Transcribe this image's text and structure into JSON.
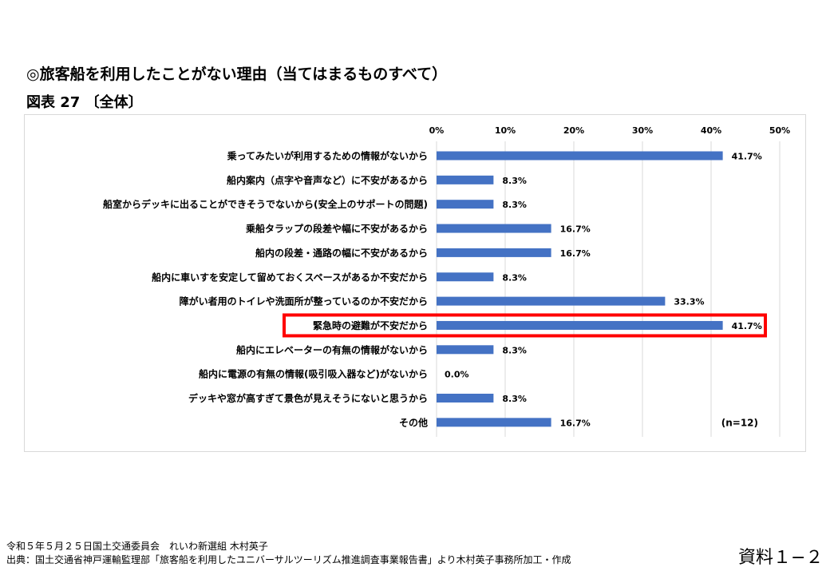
{
  "title": "◎旅客船を利用したことがない理由（当てはまるものすべて）",
  "subtitle": "図表 27 〔全体〕",
  "chart_data": {
    "type": "bar",
    "orientation": "horizontal",
    "categories": [
      "乗ってみたいが利用するための情報がないから",
      "船内案内（点字や音声など）に不安があるから",
      "船室からデッキに出ることができそうでないから(安全上のサポートの問題)",
      "乗船タラップの段差や幅に不安があるから",
      "船内の段差・通路の幅に不安があるから",
      "船内に車いすを安定して留めておくスペースがあるか不安だから",
      "障がい者用のトイレや洗面所が整っているのか不安だから",
      "緊急時の避難が不安だから",
      "船内にエレベーターの有無の情報がないから",
      "船内に電源の有無の情報(吸引吸入器など)がないから",
      "デッキや窓が高すぎて景色が見えそうにないと思うから",
      "その他"
    ],
    "values": [
      41.7,
      8.3,
      8.3,
      16.7,
      16.7,
      8.3,
      33.3,
      41.7,
      8.3,
      0.0,
      8.3,
      16.7
    ],
    "value_labels": [
      "41.7%",
      "8.3%",
      "8.3%",
      "16.7%",
      "16.7%",
      "8.3%",
      "33.3%",
      "41.7%",
      "8.3%",
      "0.0%",
      "8.3%",
      "16.7%"
    ],
    "xlim": [
      0,
      50
    ],
    "xticks": [
      "0%",
      "10%",
      "20%",
      "30%",
      "40%",
      "50%"
    ],
    "xtick_values": [
      0,
      10,
      20,
      30,
      40,
      50
    ],
    "grid": true,
    "highlighted_index": 7,
    "annotation": "(n=12)",
    "bar_color": "#4472c4",
    "highlight_color": "#ff0000"
  },
  "footer": {
    "line1": "令和５年５月２５日国土交通委員会　れいわ新選組 木村英子",
    "line2": "出典：国土交通省神戸運輸監理部「旅客船を利用したユニバーサルツーリズム推進調査事業報告書」より木村英子事務所加工・作成",
    "doc_number": "資料１−２"
  }
}
